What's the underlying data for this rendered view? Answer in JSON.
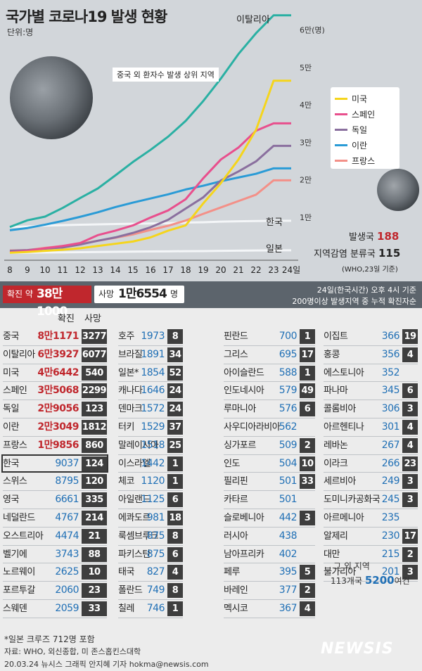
{
  "header": {
    "title": "국가별 코로나19 발생 현황",
    "unit": "단위:명",
    "subtitle": "중국 외 환자수 발생 상위 지역"
  },
  "chart_data": {
    "type": "line",
    "title": "국가별 코로나19 발생 현황",
    "x": [
      "8",
      "9",
      "10",
      "11",
      "12",
      "13",
      "14",
      "15",
      "16",
      "17",
      "18",
      "19",
      "20",
      "21",
      "22",
      "23",
      "24일"
    ],
    "y_ticks": [
      "1만",
      "2만",
      "3만",
      "4만",
      "5만",
      "6만(명)"
    ],
    "ylim": [
      0,
      65000
    ],
    "series": [
      {
        "name": "이탈리아",
        "color": "#2ab0a3",
        "values": [
          7375,
          9172,
          10149,
          12462,
          15113,
          17660,
          21157,
          24747,
          27980,
          31506,
          35713,
          41035,
          47021,
          53578,
          59138,
          63927,
          63927
        ]
      },
      {
        "name": "미국",
        "color": "#f5d51c",
        "values": [
          500,
          700,
          1000,
          1300,
          1700,
          2300,
          2900,
          3500,
          4600,
          6400,
          7800,
          13700,
          19100,
          25400,
          33300,
          46442,
          46442
        ]
      },
      {
        "name": "스페인",
        "color": "#e84f8d",
        "values": [
          600,
          1000,
          1700,
          2300,
          3100,
          5200,
          6400,
          7800,
          9900,
          11800,
          14800,
          20400,
          25400,
          28600,
          33100,
          35068,
          35068
        ]
      },
      {
        "name": "독일",
        "color": "#8a6f9e",
        "values": [
          1000,
          1200,
          1600,
          1900,
          2700,
          3700,
          4600,
          5800,
          7300,
          9300,
          12300,
          15300,
          19800,
          22200,
          24900,
          29056,
          29056
        ]
      },
      {
        "name": "이란",
        "color": "#2a9bd6",
        "values": [
          6500,
          7100,
          8000,
          9000,
          10100,
          11300,
          12700,
          13900,
          15000,
          16100,
          17400,
          18400,
          19600,
          20600,
          21600,
          23049,
          23049
        ]
      },
      {
        "name": "프랑스",
        "color": "#f39088",
        "values": [
          1100,
          1200,
          1800,
          2300,
          2900,
          3700,
          4500,
          5400,
          6600,
          7700,
          9100,
          10900,
          12600,
          14300,
          16000,
          19856,
          19856
        ]
      },
      {
        "name": "한국",
        "color": "#f4f6f8",
        "values": [
          7382,
          7513,
          7755,
          7869,
          7979,
          8086,
          8162,
          8236,
          8320,
          8413,
          8565,
          8652,
          8799,
          8897,
          8961,
          9037,
          9037
        ]
      },
      {
        "name": "일본",
        "color": "#f4f6f8",
        "values": [
          500,
          520,
          560,
          600,
          650,
          700,
          750,
          800,
          850,
          880,
          920,
          950,
          1000,
          1050,
          1100,
          1140,
          1140
        ]
      }
    ]
  },
  "chart_labels": {
    "italy": "이탈리아",
    "korea": "한국",
    "japan": "일본"
  },
  "legend": [
    {
      "name": "미국",
      "color": "#f5d51c"
    },
    {
      "name": "스페인",
      "color": "#e84f8d"
    },
    {
      "name": "독일",
      "color": "#8a6f9e"
    },
    {
      "name": "이란",
      "color": "#2a9bd6"
    },
    {
      "name": "프랑스",
      "color": "#f39088"
    }
  ],
  "stats": {
    "countries_label": "발생국",
    "countries_value": "188",
    "spread_label": "지역감염 분류국",
    "spread_value": "115",
    "source": "(WHO,23일 기준)"
  },
  "summary": {
    "confirmed_label": "확진 약",
    "confirmed_value": "38만1000",
    "deaths_label": "사망",
    "deaths_value": "1만6554",
    "deaths_unit": "명",
    "note1": "24일(한국시간) 오후 4시 기준",
    "note2": "200명이상 발생지역 중 누적 확진자순"
  },
  "table_header": {
    "confirmed": "확진",
    "deaths": "사망"
  },
  "columns": [
    [
      {
        "n": "중국",
        "c": "8만1171",
        "d": "3277",
        "red": true
      },
      {
        "n": "이탈리아",
        "c": "6만3927",
        "d": "6077",
        "red": true
      },
      {
        "n": "미국",
        "c": "4만6442",
        "d": "540",
        "red": true
      },
      {
        "n": "스페인",
        "c": "3만5068",
        "d": "2299",
        "red": true
      },
      {
        "n": "독일",
        "c": "2만9056",
        "d": "123",
        "red": true
      },
      {
        "n": "이란",
        "c": "2만3049",
        "d": "1812",
        "red": true
      },
      {
        "n": "프랑스",
        "c": "1만9856",
        "d": "860",
        "red": true
      },
      {
        "n": "한국",
        "c": "9037",
        "d": "124",
        "red": false
      },
      {
        "n": "스위스",
        "c": "8795",
        "d": "120",
        "red": false
      },
      {
        "n": "영국",
        "c": "6661",
        "d": "335",
        "red": false
      },
      {
        "n": "네덜란드",
        "c": "4767",
        "d": "214",
        "red": false
      },
      {
        "n": "오스트리아",
        "c": "4474",
        "d": "21",
        "red": false
      },
      {
        "n": "벨기에",
        "c": "3743",
        "d": "88",
        "red": false
      },
      {
        "n": "노르웨이",
        "c": "2625",
        "d": "10",
        "red": false
      },
      {
        "n": "포르투갈",
        "c": "2060",
        "d": "23",
        "red": false
      },
      {
        "n": "스웨덴",
        "c": "2059",
        "d": "33",
        "red": false
      }
    ],
    [
      {
        "n": "호주",
        "c": "1973",
        "d": "8"
      },
      {
        "n": "브라질",
        "c": "1891",
        "d": "34"
      },
      {
        "n": "일본*",
        "c": "1854",
        "d": "52"
      },
      {
        "n": "캐나다",
        "c": "1646",
        "d": "24"
      },
      {
        "n": "덴마크",
        "c": "1572",
        "d": "24"
      },
      {
        "n": "터키",
        "c": "1529",
        "d": "37"
      },
      {
        "n": "말레이시아",
        "c": "1518",
        "d": "25"
      },
      {
        "n": "이스라엘",
        "c": "1442",
        "d": "1"
      },
      {
        "n": "체코",
        "c": "1120",
        "d": "1"
      },
      {
        "n": "아일랜드",
        "c": "1125",
        "d": "6"
      },
      {
        "n": "에콰도르",
        "c": "981",
        "d": "18"
      },
      {
        "n": "룩셈브루크",
        "c": "875",
        "d": "8"
      },
      {
        "n": "파키스탄",
        "c": "875",
        "d": "6"
      },
      {
        "n": "태국",
        "c": "827",
        "d": "4"
      },
      {
        "n": "폴란드",
        "c": "749",
        "d": "8"
      },
      {
        "n": "칠레",
        "c": "746",
        "d": "1"
      }
    ],
    [
      {
        "n": "핀란드",
        "c": "700",
        "d": "1"
      },
      {
        "n": "그리스",
        "c": "695",
        "d": "17"
      },
      {
        "n": "아이슬란드",
        "c": "588",
        "d": "1"
      },
      {
        "n": "인도네시아",
        "c": "579",
        "d": "49"
      },
      {
        "n": "루마니아",
        "c": "576",
        "d": "6"
      },
      {
        "n": "사우디아라비아",
        "c": "562",
        "d": ""
      },
      {
        "n": "싱가포르",
        "c": "509",
        "d": "2"
      },
      {
        "n": "인도",
        "c": "504",
        "d": "10"
      },
      {
        "n": "필리핀",
        "c": "501",
        "d": "33"
      },
      {
        "n": "카타르",
        "c": "501",
        "d": ""
      },
      {
        "n": "슬로베니아",
        "c": "442",
        "d": "3"
      },
      {
        "n": "러시아",
        "c": "438",
        "d": ""
      },
      {
        "n": "남아프리카",
        "c": "402",
        "d": ""
      },
      {
        "n": "페루",
        "c": "395",
        "d": "5"
      },
      {
        "n": "바레인",
        "c": "377",
        "d": "2"
      },
      {
        "n": "멕시코",
        "c": "367",
        "d": "4"
      }
    ],
    [
      {
        "n": "이집트",
        "c": "366",
        "d": "19"
      },
      {
        "n": "홍콩",
        "c": "356",
        "d": "4"
      },
      {
        "n": "에스토니아",
        "c": "352",
        "d": ""
      },
      {
        "n": "파나마",
        "c": "345",
        "d": "6"
      },
      {
        "n": "콜롬비아",
        "c": "306",
        "d": "3"
      },
      {
        "n": "아르헨티나",
        "c": "301",
        "d": "4"
      },
      {
        "n": "레바논",
        "c": "267",
        "d": "4"
      },
      {
        "n": "이라크",
        "c": "266",
        "d": "23"
      },
      {
        "n": "세르비아",
        "c": "249",
        "d": "3"
      },
      {
        "n": "도미니카공화국",
        "c": "245",
        "d": "3"
      },
      {
        "n": "아르메니아",
        "c": "235",
        "d": ""
      },
      {
        "n": "알제리",
        "c": "230",
        "d": "17"
      },
      {
        "n": "대만",
        "c": "215",
        "d": "2"
      },
      {
        "n": "불가리아",
        "c": "201",
        "d": "3"
      }
    ]
  ],
  "others": {
    "label": "그 외 지역",
    "count": "113개국",
    "value": "5200",
    "unit": "여건"
  },
  "footer": {
    "note": "*일본 크루즈 712명 포함",
    "source": "자료: WHO, 외신종합, 미 존스홉킨스대학",
    "credit": "20.03.24 뉴시스 그래픽 안지혜 기자 hokma@newsis.com",
    "logo": "NEWSIS"
  },
  "colors": {
    "red": "#c0272d",
    "blue": "#1f6fb5",
    "dark": "#3e3e3e"
  }
}
